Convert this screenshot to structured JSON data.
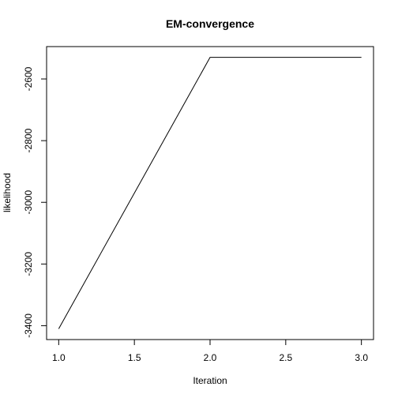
{
  "chart_data": {
    "type": "line",
    "title": "EM-convergence",
    "xlabel": "Iteration",
    "ylabel": "likelihood",
    "x": [
      1,
      2,
      3
    ],
    "series": [
      {
        "values": [
          -3410,
          -2530,
          -2530
        ]
      }
    ],
    "xlim": [
      0.92,
      3.08
    ],
    "ylim": [
      -3445,
      -2495
    ],
    "xticks": [
      1.0,
      1.5,
      2.0,
      2.5,
      3.0
    ],
    "xtick_labels": [
      "1.0",
      "1.5",
      "2.0",
      "2.5",
      "3.0"
    ],
    "yticks": [
      -3400,
      -3200,
      -3000,
      -2800,
      -2600
    ],
    "ytick_labels": [
      "-3400",
      "-3200",
      "-3000",
      "-2800",
      "-2600"
    ],
    "grid": false,
    "line_color": "#000000"
  }
}
